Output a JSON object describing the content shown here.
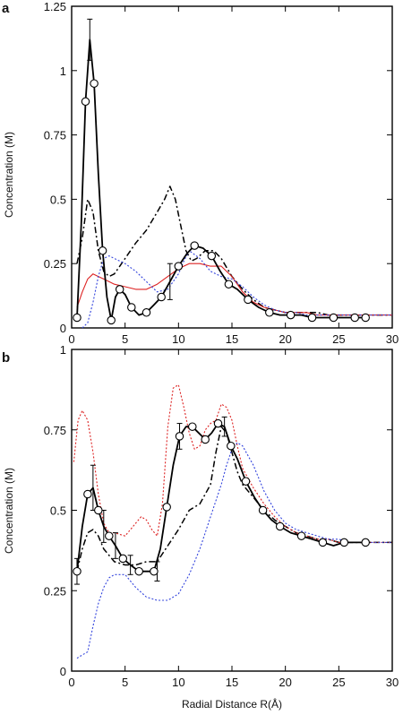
{
  "chart_data": [
    {
      "panel_label": "a",
      "type": "line",
      "xlabel": "",
      "ylabel": "Concentration (M)",
      "xlim": [
        0,
        30
      ],
      "ylim": [
        0,
        1.25
      ],
      "xticks": [
        0,
        5,
        10,
        15,
        20,
        25,
        30
      ],
      "xtick_labels": [
        "0",
        "5",
        "10",
        "15",
        "20",
        "25",
        "30"
      ],
      "yticks": [
        0,
        0.25,
        0.5,
        0.75,
        1,
        1.25
      ],
      "ytick_labels": [
        "0",
        "0.25",
        "0.5",
        "0.75",
        "1",
        "1.25"
      ],
      "grid": false,
      "series": [
        {
          "style": "solid-circles",
          "color": "#000000",
          "x": [
            0.5,
            0.9,
            1.3,
            1.7,
            2.1,
            2.5,
            2.9,
            3.3,
            3.7,
            4.1,
            4.5,
            5.0,
            5.6,
            6.3,
            7.0,
            7.7,
            8.4,
            9.2,
            10.0,
            10.8,
            11.5,
            12.3,
            13.1,
            13.9,
            14.7,
            15.5,
            16.5,
            17.5,
            18.5,
            19.5,
            20.5,
            21.5,
            22.5,
            23.5,
            24.5,
            25.5,
            26.5,
            27.5
          ],
          "y": [
            0.04,
            0.4,
            0.88,
            1.12,
            0.95,
            0.6,
            0.3,
            0.12,
            0.03,
            0.12,
            0.15,
            0.13,
            0.08,
            0.05,
            0.06,
            0.09,
            0.12,
            0.18,
            0.24,
            0.29,
            0.32,
            0.31,
            0.28,
            0.22,
            0.17,
            0.15,
            0.11,
            0.08,
            0.06,
            0.05,
            0.05,
            0.05,
            0.04,
            0.04,
            0.04,
            0.04,
            0.04,
            0.04
          ]
        },
        {
          "style": "dash-dot",
          "color": "#000000",
          "x": [
            0.5,
            1.0,
            1.5,
            2.0,
            2.5,
            3.0,
            3.5,
            4.0,
            5.0,
            6.0,
            7.0,
            8.0,
            8.7,
            9.2,
            9.7,
            10.2,
            10.7,
            11.2,
            11.7,
            12.5,
            13.3,
            14.0,
            15.0,
            16.0,
            17.0,
            18.0,
            19.0,
            20.0,
            21.0,
            22.0,
            23.0,
            24.0,
            25.0,
            26.0,
            27.0,
            28.0,
            29.0,
            30.0
          ],
          "y": [
            0.25,
            0.35,
            0.5,
            0.45,
            0.3,
            0.22,
            0.2,
            0.21,
            0.27,
            0.33,
            0.38,
            0.45,
            0.5,
            0.55,
            0.5,
            0.4,
            0.3,
            0.26,
            0.27,
            0.3,
            0.3,
            0.27,
            0.2,
            0.15,
            0.11,
            0.08,
            0.07,
            0.06,
            0.06,
            0.06,
            0.06,
            0.05,
            0.05,
            0.05,
            0.05,
            0.05,
            0.05,
            0.05
          ]
        },
        {
          "style": "solid",
          "color": "#dd2222",
          "x": [
            0.5,
            1.0,
            1.5,
            2.0,
            2.5,
            3.0,
            4.0,
            5.0,
            6.0,
            7.0,
            8.0,
            9.0,
            10.0,
            11.0,
            12.0,
            13.0,
            14.0,
            15.0,
            16.0,
            17.0,
            18.0,
            19.0,
            20.0,
            21.0,
            22.0,
            23.0,
            24.0,
            25.0,
            26.0,
            27.0,
            28.0,
            29.0,
            30.0
          ],
          "y": [
            0.08,
            0.14,
            0.19,
            0.21,
            0.2,
            0.19,
            0.17,
            0.16,
            0.15,
            0.15,
            0.17,
            0.2,
            0.23,
            0.25,
            0.25,
            0.24,
            0.24,
            0.2,
            0.14,
            0.1,
            0.08,
            0.07,
            0.06,
            0.06,
            0.06,
            0.05,
            0.05,
            0.05,
            0.05,
            0.05,
            0.05,
            0.05,
            0.05
          ]
        },
        {
          "style": "dotted",
          "color": "#3344dd",
          "x": [
            1.0,
            1.5,
            2.0,
            2.5,
            3.0,
            3.5,
            4.0,
            5.0,
            6.0,
            7.0,
            8.0,
            9.0,
            10.0,
            10.5,
            11.0,
            12.0,
            13.0,
            14.0,
            15.0,
            16.0,
            17.0,
            18.0,
            19.0,
            20.0,
            21.0,
            22.0,
            23.0,
            24.0,
            25.0,
            26.0,
            27.0,
            28.0,
            29.0,
            30.0
          ],
          "y": [
            0.0,
            0.02,
            0.1,
            0.2,
            0.27,
            0.28,
            0.27,
            0.25,
            0.22,
            0.18,
            0.14,
            0.15,
            0.21,
            0.26,
            0.3,
            0.27,
            0.22,
            0.2,
            0.19,
            0.16,
            0.12,
            0.09,
            0.07,
            0.06,
            0.06,
            0.05,
            0.05,
            0.05,
            0.05,
            0.05,
            0.05,
            0.05,
            0.05,
            0.05
          ]
        }
      ],
      "error_bars": {
        "x": [
          1.7,
          9.2
        ],
        "y": [
          1.12,
          0.18
        ],
        "err": [
          0.08,
          0.07
        ]
      }
    },
    {
      "panel_label": "b",
      "type": "line",
      "xlabel": "Radial Distance R(Å)",
      "ylabel": "Concentration (M)",
      "xlim": [
        0,
        30
      ],
      "ylim": [
        0,
        1
      ],
      "xticks": [
        0,
        5,
        10,
        15,
        20,
        25,
        30
      ],
      "xtick_labels": [
        "0",
        "5",
        "10",
        "15",
        "20",
        "25",
        "30"
      ],
      "yticks": [
        0,
        0.25,
        0.5,
        0.75,
        1
      ],
      "ytick_labels": [
        "0",
        "0.25",
        "0.5",
        "0.75",
        "1"
      ],
      "grid": false,
      "series": [
        {
          "style": "solid-circles",
          "color": "#000000",
          "x": [
            0.5,
            1.0,
            1.5,
            2.0,
            2.5,
            3.0,
            3.5,
            4.1,
            4.8,
            5.5,
            6.3,
            7.0,
            7.7,
            8.3,
            8.9,
            9.5,
            10.1,
            10.7,
            11.3,
            11.9,
            12.5,
            13.1,
            13.7,
            14.3,
            14.9,
            15.5,
            16.3,
            17.1,
            17.9,
            18.7,
            19.5,
            20.5,
            21.5,
            22.5,
            23.5,
            24.5,
            25.5,
            26.5,
            27.5
          ],
          "y": [
            0.31,
            0.45,
            0.55,
            0.57,
            0.5,
            0.45,
            0.42,
            0.39,
            0.35,
            0.33,
            0.31,
            0.31,
            0.31,
            0.38,
            0.51,
            0.64,
            0.73,
            0.76,
            0.76,
            0.74,
            0.72,
            0.74,
            0.77,
            0.76,
            0.7,
            0.66,
            0.59,
            0.54,
            0.5,
            0.47,
            0.45,
            0.43,
            0.42,
            0.41,
            0.4,
            0.39,
            0.4,
            0.4,
            0.4
          ]
        },
        {
          "style": "dash-dot",
          "color": "#000000",
          "x": [
            0.5,
            1.0,
            1.5,
            2.0,
            2.5,
            3.0,
            4.0,
            5.0,
            6.0,
            7.0,
            8.0,
            9.0,
            10.0,
            11.0,
            12.0,
            13.0,
            13.5,
            14.0,
            14.5,
            15.0,
            15.5,
            16.0,
            17.0,
            18.0,
            19.0,
            20.0,
            21.0,
            22.0,
            23.0,
            24.0,
            25.0,
            26.0,
            27.0,
            28.0,
            29.0,
            30.0
          ],
          "y": [
            0.31,
            0.38,
            0.43,
            0.44,
            0.42,
            0.38,
            0.34,
            0.33,
            0.33,
            0.34,
            0.34,
            0.39,
            0.44,
            0.5,
            0.52,
            0.58,
            0.68,
            0.76,
            0.74,
            0.68,
            0.62,
            0.58,
            0.54,
            0.5,
            0.47,
            0.45,
            0.43,
            0.42,
            0.41,
            0.41,
            0.4,
            0.4,
            0.4,
            0.4,
            0.4,
            0.4
          ]
        },
        {
          "style": "dotted",
          "color": "#dd2222",
          "x": [
            0.2,
            0.6,
            1.0,
            1.5,
            2.0,
            2.5,
            3.0,
            3.5,
            4.0,
            5.0,
            6.0,
            6.5,
            7.0,
            7.5,
            8.0,
            8.5,
            9.0,
            9.5,
            10.0,
            10.5,
            11.0,
            11.5,
            12.0,
            12.5,
            13.0,
            13.5,
            14.0,
            14.5,
            15.0,
            15.5,
            16.0,
            17.0,
            18.0,
            19.0,
            20.0,
            21.0,
            22.0,
            23.0,
            24.0,
            25.0,
            26.0,
            27.0,
            28.0,
            29.0,
            30.0
          ],
          "y": [
            0.65,
            0.78,
            0.81,
            0.78,
            0.68,
            0.55,
            0.46,
            0.43,
            0.43,
            0.42,
            0.46,
            0.48,
            0.47,
            0.44,
            0.42,
            0.52,
            0.76,
            0.88,
            0.89,
            0.82,
            0.74,
            0.69,
            0.7,
            0.75,
            0.77,
            0.78,
            0.83,
            0.82,
            0.78,
            0.7,
            0.63,
            0.57,
            0.52,
            0.48,
            0.45,
            0.43,
            0.42,
            0.41,
            0.41,
            0.4,
            0.4,
            0.4,
            0.4,
            0.4,
            0.4
          ]
        },
        {
          "style": "dotted",
          "color": "#3344dd",
          "x": [
            0.5,
            1.0,
            1.5,
            2.0,
            2.5,
            3.0,
            3.5,
            4.0,
            5.0,
            6.0,
            7.0,
            8.0,
            9.0,
            10.0,
            11.0,
            12.0,
            13.0,
            14.0,
            14.5,
            15.0,
            15.5,
            16.0,
            17.0,
            18.0,
            19.0,
            20.0,
            21.0,
            22.0,
            23.0,
            24.0,
            25.0,
            26.0,
            27.0,
            28.0,
            29.0,
            30.0
          ],
          "y": [
            0.04,
            0.05,
            0.06,
            0.14,
            0.21,
            0.26,
            0.29,
            0.3,
            0.3,
            0.26,
            0.23,
            0.22,
            0.22,
            0.24,
            0.3,
            0.38,
            0.48,
            0.58,
            0.64,
            0.69,
            0.71,
            0.7,
            0.64,
            0.56,
            0.5,
            0.46,
            0.44,
            0.43,
            0.42,
            0.41,
            0.41,
            0.4,
            0.4,
            0.4,
            0.4,
            0.4
          ]
        }
      ],
      "error_bars": {
        "x": [
          0.5,
          2.0,
          3.0,
          4.1,
          5.5,
          8.0,
          10.1,
          14.3
        ],
        "y": [
          0.31,
          0.57,
          0.45,
          0.39,
          0.33,
          0.31,
          0.73,
          0.76
        ],
        "err": [
          0.04,
          0.07,
          0.05,
          0.04,
          0.03,
          0.03,
          0.04,
          0.03
        ]
      }
    }
  ]
}
